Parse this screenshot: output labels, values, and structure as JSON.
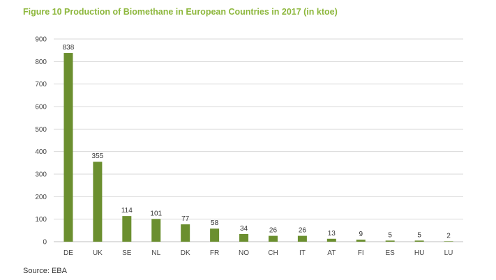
{
  "title": "Figure 10 Production of Biomethane in European Countries in 2017 (in ktoe)",
  "source": "Source: EBA",
  "colors": {
    "title": "#8db73c",
    "bar": "#6b8f2f",
    "grid": "#d9d9d9",
    "axis": "#bfbfbf"
  },
  "chart_data": {
    "type": "bar",
    "title": "Figure 10 Production of Biomethane in European Countries in 2017 (in ktoe)",
    "xlabel": "",
    "ylabel": "",
    "categories": [
      "DE",
      "UK",
      "SE",
      "NL",
      "DK",
      "FR",
      "NO",
      "CH",
      "IT",
      "AT",
      "FI",
      "ES",
      "HU",
      "LU"
    ],
    "values": [
      838,
      355,
      114,
      101,
      77,
      58,
      34,
      26,
      26,
      13,
      9,
      5,
      5,
      2
    ],
    "ylim": [
      0,
      900
    ],
    "yticks": [
      0,
      100,
      200,
      300,
      400,
      500,
      600,
      700,
      800,
      900
    ],
    "grid": true,
    "legend": "none"
  }
}
